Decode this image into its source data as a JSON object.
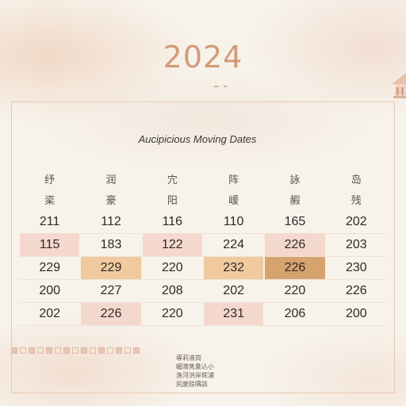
{
  "header": {
    "year": "2024",
    "title": "Aucipicious Moving Dates"
  },
  "columns": {
    "row1": [
      "纾",
      "润",
      "宂",
      "阵",
      "詠",
      "岛"
    ],
    "row2": [
      "秶",
      "豪",
      "阳",
      "嵈",
      "赮",
      "残"
    ]
  },
  "table": {
    "rows": [
      [
        "211",
        "112",
        "116",
        "110",
        "165",
        "202"
      ],
      [
        "115",
        "183",
        "122",
        "224",
        "226",
        "203"
      ],
      [
        "229",
        "229",
        "220",
        "232",
        "226",
        "230"
      ],
      [
        "200",
        "227",
        "208",
        "202",
        "220",
        "226"
      ],
      [
        "202",
        "226",
        "220",
        "231",
        "206",
        "200"
      ]
    ],
    "highlights": [
      [
        "none",
        "none",
        "none",
        "none",
        "none",
        "none"
      ],
      [
        "pink",
        "none",
        "pink",
        "none",
        "pink",
        "none"
      ],
      [
        "none",
        "peach",
        "none",
        "peach",
        "gold",
        "none"
      ],
      [
        "none",
        "none",
        "none",
        "none",
        "none",
        "none"
      ],
      [
        "none",
        "pink",
        "none",
        "pink",
        "none",
        "none"
      ]
    ]
  },
  "notes": [
    "導莉液岗",
    "嵋漪隽洜込小",
    "渔河洪岸辉浦",
    "尻庱赊隅該"
  ],
  "colors": {
    "pink": "#f5d8cd",
    "peach": "#f0c99e",
    "gold": "#d6a26e",
    "accent": "#d39a78"
  }
}
